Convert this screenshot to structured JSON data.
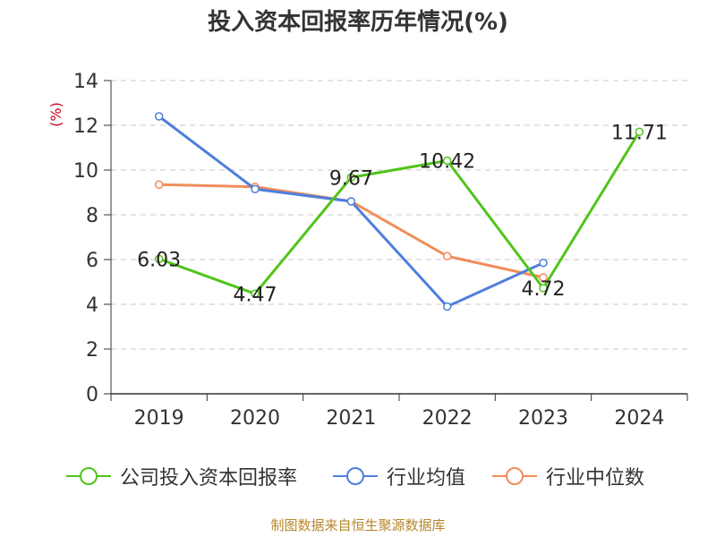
{
  "title": "投入资本回报率历年情况(%)",
  "source": "制图数据来自恒生聚源数据库",
  "chart_data": {
    "type": "line",
    "title": "投入资本回报率历年情况(%)",
    "xlabel": "",
    "ylabel": "(%)",
    "ylim": [
      0,
      14
    ],
    "yticks": [
      0,
      2,
      4,
      6,
      8,
      10,
      12,
      14
    ],
    "grid": true,
    "legend_position": "bottom",
    "categories": [
      "2019",
      "2020",
      "2021",
      "2022",
      "2023",
      "2024"
    ],
    "series": [
      {
        "name": "公司投入资本回报率",
        "color": "#52c41a",
        "values": [
          6.03,
          4.47,
          9.67,
          10.42,
          4.72,
          11.71
        ],
        "labels": [
          "6.03",
          "4.47",
          "9.67",
          "10.42",
          "4.72",
          "11.71"
        ]
      },
      {
        "name": "行业均值",
        "color": "#4e7fdc",
        "values": [
          12.4,
          9.15,
          8.6,
          3.9,
          5.85,
          null
        ]
      },
      {
        "name": "行业中位数",
        "color": "#f28c5a",
        "values": [
          9.35,
          9.25,
          8.6,
          6.15,
          5.2,
          null
        ]
      }
    ]
  }
}
